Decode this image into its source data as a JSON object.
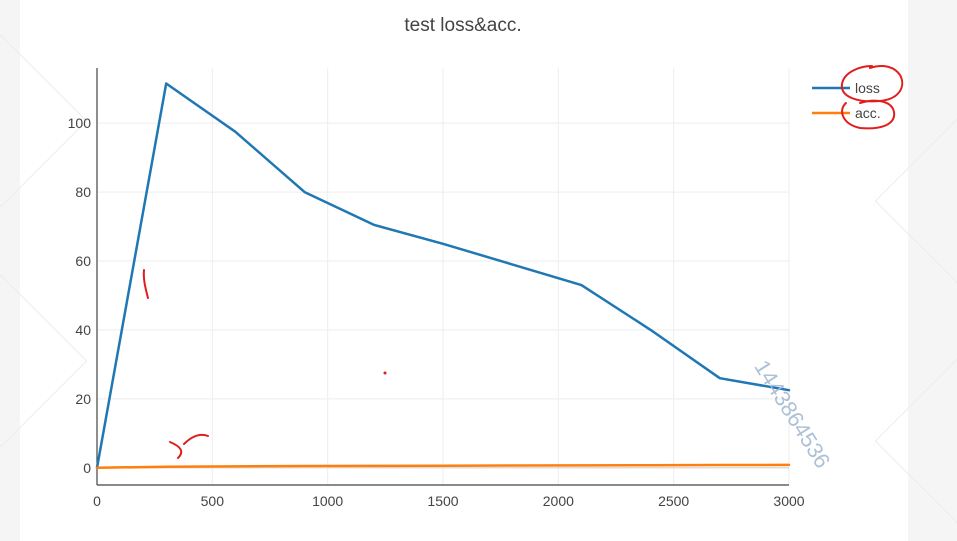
{
  "chart_data": {
    "type": "line",
    "title": "test loss&acc.",
    "xlabel": "",
    "ylabel": "",
    "xlim": [
      0,
      3000
    ],
    "ylim": [
      -5,
      116
    ],
    "x_ticks": [
      0,
      500,
      1000,
      1500,
      2000,
      2500,
      3000
    ],
    "y_ticks": [
      0,
      20,
      40,
      60,
      80,
      100
    ],
    "grid": true,
    "legend_position": "top-right",
    "series": [
      {
        "name": "loss",
        "color": "#1f77b4",
        "x": [
          0,
          300,
          600,
          900,
          1200,
          1500,
          1800,
          2100,
          2400,
          2700,
          3000
        ],
        "y": [
          0,
          111.5,
          97.5,
          80,
          70.5,
          65,
          59,
          53,
          40,
          26,
          22.5
        ]
      },
      {
        "name": "acc.",
        "color": "#ff7f0e",
        "x": [
          0,
          300,
          600,
          900,
          1200,
          1500,
          1800,
          2100,
          2400,
          2700,
          3000
        ],
        "y": [
          0,
          0.3,
          0.4,
          0.5,
          0.55,
          0.6,
          0.65,
          0.7,
          0.75,
          0.8,
          0.82
        ]
      }
    ]
  },
  "watermark": "1443864536"
}
